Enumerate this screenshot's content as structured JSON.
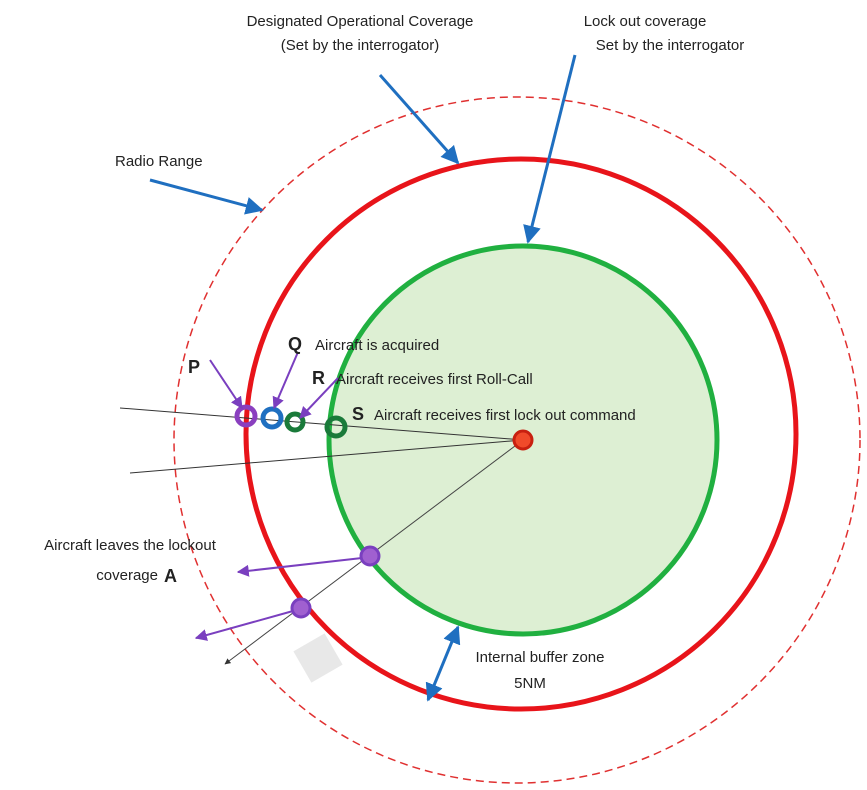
{
  "labels": {
    "designated": [
      "Designated Operational Coverage",
      "(Set by the interrogator)"
    ],
    "lockout": [
      "Lock out coverage",
      "Set by the interrogator"
    ],
    "radio": "Radio Range",
    "p": "P",
    "q": "Q",
    "q_text": "Aircraft is acquired",
    "r": "R",
    "r_text": "Aircraft receives first Roll-Call",
    "s": "S",
    "s_text": "Aircraft receives first lock out command",
    "leaves": [
      "Aircraft leaves the lockout",
      "coverage"
    ],
    "a": "A",
    "buffer": [
      "Internal buffer zone",
      "5NM"
    ]
  }
}
